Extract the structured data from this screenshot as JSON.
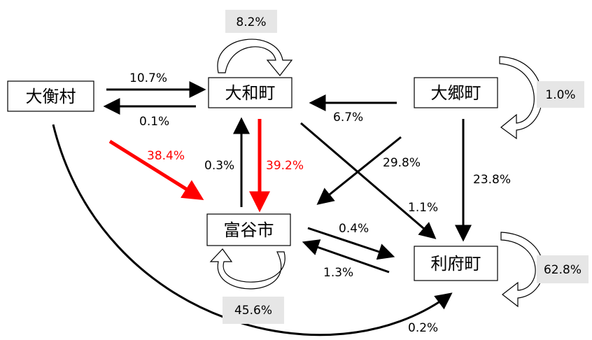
{
  "nodes": {
    "taihira": "大衡村",
    "yamato": "大和町",
    "osato": "大郷町",
    "tomiya": "富谷市",
    "rifu": "利府町"
  },
  "flows": {
    "taihira_to_yamato": "10.7%",
    "yamato_to_taihira": "0.1%",
    "taihira_to_tomiya": "38.4%",
    "tomiya_to_yamato": "0.3%",
    "yamato_to_tomiya": "39.2%",
    "osato_to_yamato": "6.7%",
    "osato_to_tomiya": "29.8%",
    "yamato_to_rifu": "1.1%",
    "osato_to_rifu": "23.8%",
    "tomiya_to_rifu": "0.4%",
    "rifu_to_tomiya": "1.3%",
    "taihira_to_rifu": "0.2%"
  },
  "self_flows": {
    "yamato": "8.2%",
    "osato": "1.0%",
    "tomiya": "45.6%",
    "rifu": "62.8%"
  },
  "colors": {
    "highlight": "#ff0000",
    "normal": "#000000",
    "label_background": "#e6e6e6"
  }
}
